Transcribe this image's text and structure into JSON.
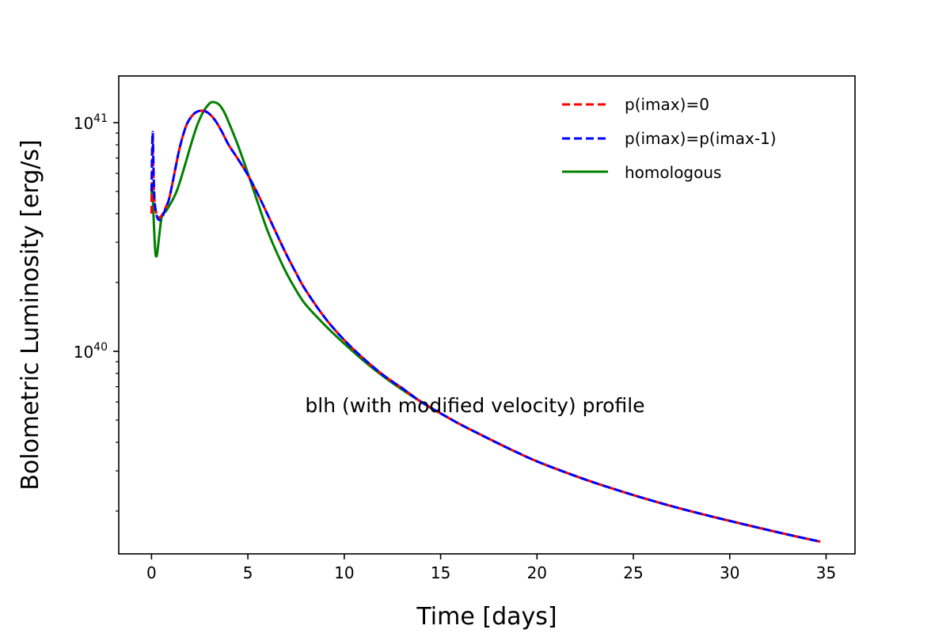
{
  "chart_data": {
    "type": "line",
    "xlabel": "Time [days]",
    "ylabel": "Bolometric Luminosity [erg/s]",
    "xlim": [
      -1.7,
      36.5
    ],
    "ylim": [
      1.3e+39,
      1.6e+41
    ],
    "yscale": "log",
    "xticks": [
      0,
      5,
      10,
      15,
      20,
      25,
      30,
      35
    ],
    "xtick_labels": [
      "0",
      "5",
      "10",
      "15",
      "20",
      "25",
      "30",
      "35"
    ],
    "yticks": [
      1e+40,
      1e+41
    ],
    "ytick_base": "10",
    "ytick_exponents": [
      "40",
      "41"
    ],
    "annotation": "blh (with modified velocity) profile",
    "legend_position": "upper right",
    "grid": false,
    "series": [
      {
        "name": "p(imax)=0",
        "color": "#ff0000",
        "style": "dashed",
        "x": [
          0,
          0.03,
          0.06,
          0.09,
          0.12,
          0.15,
          0.2,
          0.3,
          0.4,
          0.55,
          0.7,
          0.9,
          1.1,
          1.3,
          1.5,
          1.8,
          2.1,
          2.4,
          2.8,
          3.2,
          3.6,
          4.0,
          4.5,
          5.0,
          5.5,
          6.0,
          6.5,
          7.0,
          7.5,
          8.0,
          9.0,
          10.0,
          11.0,
          12.0,
          13.0,
          14.0,
          15.0,
          16.0,
          17.0,
          18.0,
          19.0,
          20.0,
          21.5,
          23.0,
          25.0,
          27.0,
          29.0,
          31.0,
          33.0,
          34.7
        ],
        "y": [
          4e+40,
          5.5e+40,
          8.5e+40,
          6.5e+40,
          5.2e+40,
          4.6e+40,
          4.2e+40,
          3.9e+40,
          3.85e+40,
          3.95e+40,
          4.2e+40,
          4.6e+40,
          5.5e+40,
          6.7e+40,
          8e+40,
          9.7e+40,
          1.07e+41,
          1.12e+41,
          1.12e+41,
          1.05e+41,
          9.3e+40,
          8e+40,
          6.9e+40,
          5.9e+40,
          4.9e+40,
          4e+40,
          3.25e+40,
          2.65e+40,
          2.2e+40,
          1.85e+40,
          1.4e+40,
          1.12e+40,
          9.3e+39,
          7.9e+39,
          6.9e+39,
          6e+39,
          5.35e+39,
          4.8e+39,
          4.35e+39,
          3.95e+39,
          3.6e+39,
          3.3e+39,
          2.95e+39,
          2.66e+39,
          2.35e+39,
          2.1e+39,
          1.9e+39,
          1.73e+39,
          1.58e+39,
          1.47e+39
        ]
      },
      {
        "name": "p(imax)=p(imax-1)",
        "color": "#0000ff",
        "style": "dashed",
        "x": [
          0,
          0.03,
          0.06,
          0.09,
          0.12,
          0.15,
          0.2,
          0.3,
          0.4,
          0.55,
          0.7,
          0.9,
          1.1,
          1.3,
          1.5,
          1.8,
          2.1,
          2.4,
          2.8,
          3.2,
          3.6,
          4.0,
          4.5,
          5.0,
          5.5,
          6.0,
          6.5,
          7.0,
          7.5,
          8.0,
          9.0,
          10.0,
          11.0,
          12.0,
          13.0,
          14.0,
          15.0,
          16.0,
          17.0,
          18.0,
          19.0,
          20.0,
          21.5,
          23.0,
          25.0,
          27.0,
          29.0,
          31.0,
          33.0,
          34.7
        ],
        "y": [
          5e+40,
          7.5e+40,
          9.1e+40,
          7.2e+40,
          5.5e+40,
          4.7e+40,
          4.2e+40,
          3.85e+40,
          3.75e+40,
          3.85e+40,
          4.15e+40,
          4.6e+40,
          5.5e+40,
          6.7e+40,
          8e+40,
          9.7e+40,
          1.07e+41,
          1.12e+41,
          1.12e+41,
          1.05e+41,
          9.3e+40,
          8e+40,
          6.9e+40,
          5.9e+40,
          4.9e+40,
          4e+40,
          3.25e+40,
          2.65e+40,
          2.2e+40,
          1.85e+40,
          1.4e+40,
          1.12e+40,
          9.3e+39,
          7.9e+39,
          6.9e+39,
          6e+39,
          5.35e+39,
          4.8e+39,
          4.35e+39,
          3.95e+39,
          3.6e+39,
          3.3e+39,
          2.95e+39,
          2.66e+39,
          2.35e+39,
          2.1e+39,
          1.9e+39,
          1.73e+39,
          1.58e+39,
          1.47e+39
        ]
      },
      {
        "name": "homologous",
        "color": "#008000",
        "style": "solid",
        "x": [
          0,
          0.03,
          0.06,
          0.1,
          0.15,
          0.2,
          0.25,
          0.3,
          0.4,
          0.5,
          0.6,
          0.75,
          0.9,
          1.1,
          1.3,
          1.5,
          1.8,
          2.1,
          2.4,
          2.7,
          3.0,
          3.2,
          3.5,
          3.8,
          4.1,
          4.5,
          5.0,
          5.5,
          6.0,
          6.5,
          7.0,
          7.5,
          8.0,
          9.0,
          10.0,
          11.0,
          12.0,
          13.0,
          14.0,
          15.0,
          16.0,
          17.0,
          18.0,
          19.0,
          20.0,
          21.5,
          23.0,
          25.0,
          27.0,
          29.0,
          31.0,
          33.0,
          34.7
        ],
        "y": [
          4.5e+40,
          5.3e+40,
          5e+40,
          4e+40,
          3.2e+40,
          2.7e+40,
          2.6e+40,
          2.7e+40,
          3.2e+40,
          3.75e+40,
          4e+40,
          4.1e+40,
          4.3e+40,
          4.6e+40,
          5e+40,
          5.6e+40,
          6.8e+40,
          8.3e+40,
          9.9e+40,
          1.12e+41,
          1.21e+41,
          1.23e+41,
          1.2e+41,
          1.1e+41,
          9.6e+40,
          7.9e+40,
          6e+40,
          4.5e+40,
          3.4e+40,
          2.7e+40,
          2.2e+40,
          1.85e+40,
          1.6e+40,
          1.3e+40,
          1.08e+40,
          9.1e+39,
          7.8e+39,
          6.8e+39,
          6e+39,
          5.35e+39,
          4.8e+39,
          4.35e+39,
          3.95e+39,
          3.6e+39,
          3.3e+39,
          2.95e+39,
          2.66e+39,
          2.35e+39,
          2.1e+39,
          1.9e+39,
          1.73e+39,
          1.58e+39,
          1.47e+39
        ]
      }
    ]
  }
}
